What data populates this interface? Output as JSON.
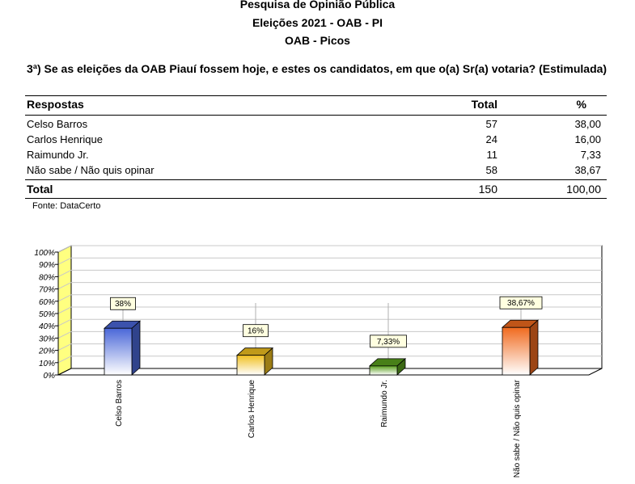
{
  "header": {
    "title_line1": "Pesquisa de Opinião Pública",
    "title_line2": "Eleições 2021 - OAB - PI",
    "title_line3": "OAB - Picos"
  },
  "question": "3ª) Se as eleições da OAB Piauí fossem hoje, e estes os candidatos, em que o(a) Sr(a) votaria? (Estimulada)",
  "table": {
    "columns": [
      "Respostas",
      "Total",
      "%"
    ],
    "rows": [
      {
        "label": "Celso Barros",
        "total": "57",
        "pct": "38,00"
      },
      {
        "label": "Carlos Henrique",
        "total": "24",
        "pct": "16,00"
      },
      {
        "label": "Raimundo Jr.",
        "total": "11",
        "pct": "7,33"
      },
      {
        "label": "Não sabe / Não quis opinar",
        "total": "58",
        "pct": "38,67"
      }
    ],
    "total_row": {
      "label": "Total",
      "total": "150",
      "pct": "100,00"
    }
  },
  "source": "Fonte: DataCerto",
  "chart_data": {
    "type": "bar",
    "categories": [
      "Celso Barros",
      "Carlos Henrique",
      "Raimundo Jr.",
      "Não sabe / Não quis opinar"
    ],
    "values": [
      38,
      16,
      7.33,
      38.67
    ],
    "data_labels": [
      "38%",
      "16%",
      "7,33%",
      "38,67%"
    ],
    "ylim": [
      0,
      100
    ],
    "yticks": [
      "0%",
      "10%",
      "20%",
      "30%",
      "40%",
      "50%",
      "60%",
      "70%",
      "80%",
      "90%",
      "100%"
    ],
    "grid": true,
    "title": "",
    "xlabel": "",
    "ylabel": "",
    "colors": [
      "#4a67d8",
      "#f0c020",
      "#5aa01e",
      "#f06a1e"
    ],
    "wall_color": "#ffff80"
  }
}
